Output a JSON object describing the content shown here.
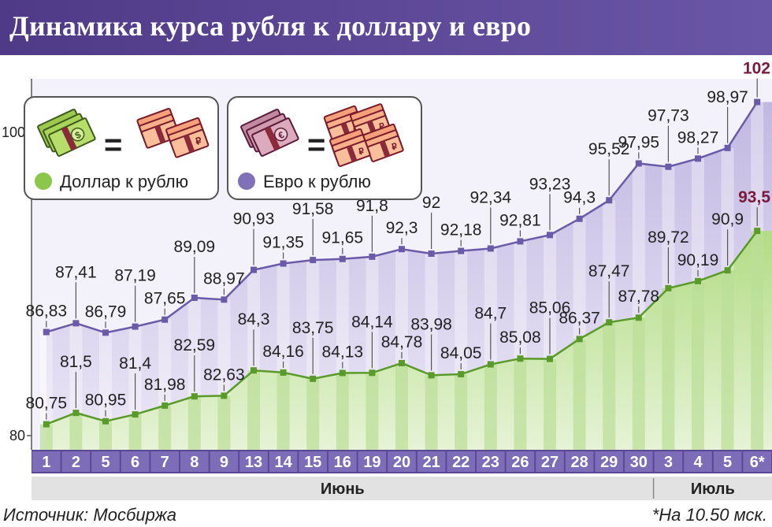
{
  "header": {
    "title": "Динамика курса рубля к доллару и евро"
  },
  "legend": {
    "usd": {
      "label": "Доллар к рублю",
      "color": "#8cc64a",
      "icon_left": "dollar-banknotes-icon",
      "icon_right": "ruble-banknotes-icon"
    },
    "eur": {
      "label": "Евро к рублю",
      "color": "#8070b8",
      "icon_left": "euro-banknotes-icon",
      "icon_right": "ruble-banknotes-icon"
    },
    "equals": "="
  },
  "footer": {
    "source": "Источник: Мосбиржа",
    "note": "*На 10.50 мск."
  },
  "chart_data": {
    "type": "line",
    "categories": [
      "1",
      "2",
      "5",
      "6",
      "7",
      "8",
      "9",
      "13",
      "14",
      "15",
      "16",
      "19",
      "20",
      "21",
      "22",
      "23",
      "26",
      "27",
      "28",
      "29",
      "30",
      "3",
      "4",
      "5",
      "6*"
    ],
    "months": [
      {
        "label": "Июнь",
        "count": 21
      },
      {
        "label": "Июль",
        "count": 4
      }
    ],
    "series": [
      {
        "name": "Доллар к рублю",
        "color": "#8cc64a",
        "values": [
          80.75,
          81.5,
          80.95,
          81.4,
          81.98,
          82.59,
          82.63,
          84.3,
          84.16,
          83.75,
          84.13,
          84.14,
          84.78,
          83.98,
          84.05,
          84.7,
          85.08,
          85.06,
          86.37,
          87.47,
          87.78,
          89.72,
          90.19,
          90.9,
          93.5
        ],
        "labels": [
          "80,75",
          "81,5",
          "80,95",
          "81,4",
          "81,98",
          "82,59",
          "82,63",
          "84,3",
          "84,16",
          "83,75",
          "84,13",
          "84,14",
          "84,78",
          "83,98",
          "84,05",
          "84,7",
          "85,08",
          "85,06",
          "86,37",
          "87,47",
          "87,78",
          "89,72",
          "90,19",
          "90,9",
          "93,5"
        ]
      },
      {
        "name": "Евро к рублю",
        "color": "#8070b8",
        "values": [
          86.83,
          87.41,
          86.79,
          87.19,
          87.65,
          89.09,
          88.97,
          90.93,
          91.35,
          91.58,
          91.65,
          91.8,
          92.3,
          92.0,
          92.18,
          92.34,
          92.81,
          93.23,
          94.3,
          95.52,
          97.95,
          97.73,
          98.27,
          98.97,
          102
        ],
        "labels": [
          "86,83",
          "87,41",
          "86,79",
          "87,19",
          "87,65",
          "89,09",
          "88,97",
          "90,93",
          "91,35",
          "91,58",
          "91,65",
          "91,8",
          "92,3",
          "92",
          "92,18",
          "92,34",
          "92,81",
          "93,23",
          "94,3",
          "95,52",
          "97,95",
          "97,73",
          "98,27",
          "98,97",
          "102"
        ]
      }
    ],
    "yticks": [
      {
        "value": 80,
        "label": "80"
      },
      {
        "value": 100,
        "label": "100"
      }
    ],
    "ylim": [
      80,
      104
    ],
    "grid": false,
    "highlight_last_color": "#7a1a3a"
  }
}
